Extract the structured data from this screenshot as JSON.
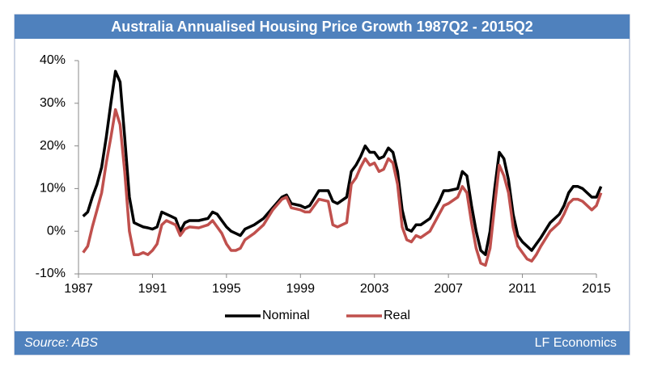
{
  "chart_data": {
    "type": "line",
    "title": "Australia Annualised Housing Price Growth 1987Q2 - 2015Q2",
    "source": "Source: ABS",
    "credit": "LF Economics",
    "x": [
      1987.25,
      1987.5,
      1987.75,
      1988.0,
      1988.25,
      1988.5,
      1988.75,
      1989.0,
      1989.25,
      1989.5,
      1989.75,
      1990.0,
      1990.25,
      1990.5,
      1990.75,
      1991.0,
      1991.25,
      1991.5,
      1991.75,
      1992.0,
      1992.25,
      1992.5,
      1992.75,
      1993.0,
      1993.5,
      1994.0,
      1994.25,
      1994.5,
      1994.75,
      1995.0,
      1995.25,
      1995.5,
      1995.75,
      1996.0,
      1996.5,
      1997.0,
      1997.5,
      1998.0,
      1998.25,
      1998.5,
      1999.0,
      1999.25,
      1999.5,
      2000.0,
      2000.5,
      2000.75,
      2001.0,
      2001.5,
      2001.75,
      2002.0,
      2002.25,
      2002.5,
      2002.75,
      2003.0,
      2003.25,
      2003.5,
      2003.75,
      2004.0,
      2004.25,
      2004.5,
      2004.75,
      2005.0,
      2005.25,
      2005.5,
      2006.0,
      2006.5,
      2006.75,
      2007.0,
      2007.5,
      2007.75,
      2008.0,
      2008.25,
      2008.5,
      2008.75,
      2009.0,
      2009.25,
      2009.5,
      2009.75,
      2010.0,
      2010.25,
      2010.5,
      2010.75,
      2011.0,
      2011.25,
      2011.5,
      2011.75,
      2012.0,
      2012.5,
      2013.0,
      2013.25,
      2013.5,
      2013.75,
      2014.0,
      2014.25,
      2014.75,
      2015.0,
      2015.25
    ],
    "series": [
      {
        "name": "Nominal",
        "color": "#000000",
        "values": [
          3.5,
          4.5,
          8,
          11,
          15,
          22,
          30,
          37.5,
          35,
          22,
          8,
          2,
          1.5,
          1,
          0.8,
          0.5,
          1,
          4.5,
          4,
          3.5,
          3,
          0,
          2,
          2.5,
          2.5,
          3,
          4.5,
          4,
          2.5,
          1,
          0,
          -0.5,
          -1,
          0.5,
          1.5,
          3,
          5.5,
          8,
          8.5,
          6.5,
          6,
          5.5,
          6,
          9.5,
          9.5,
          7,
          6.5,
          8,
          14,
          15.5,
          17.5,
          20,
          18.5,
          18.5,
          17,
          17.5,
          19.5,
          18.5,
          14,
          5,
          0.5,
          0,
          1.5,
          1.5,
          3,
          7,
          9.5,
          9.5,
          10,
          14,
          13,
          6,
          0,
          -4.5,
          -5.5,
          0,
          10,
          18.5,
          17,
          12,
          4,
          -1,
          -2.5,
          -3.5,
          -4.5,
          -3,
          -1.5,
          2,
          4,
          6,
          9,
          10.5,
          10.5,
          10,
          8,
          8,
          10.5
        ]
      },
      {
        "name": "Real",
        "color": "#c0504d",
        "values": [
          -5,
          -3.5,
          1,
          5,
          9,
          16,
          22,
          28.5,
          25,
          14,
          0,
          -5.5,
          -5.5,
          -5,
          -5.5,
          -4.5,
          -3,
          1.5,
          2.5,
          2,
          1.5,
          -1,
          0.5,
          1,
          0.8,
          1.5,
          2.5,
          1,
          -0.5,
          -3,
          -4.5,
          -4.5,
          -4,
          -2,
          -0.5,
          1.5,
          5,
          7.5,
          8,
          5.5,
          5,
          4.5,
          4.5,
          7.5,
          7,
          1.5,
          1,
          2,
          11,
          12.5,
          15,
          17,
          15.5,
          16,
          14,
          14.5,
          17,
          16,
          11,
          1,
          -2,
          -2.5,
          -1,
          -1.5,
          0,
          4,
          6,
          6.5,
          8,
          10.5,
          9,
          2,
          -4,
          -7.5,
          -8,
          -4,
          6,
          15.5,
          13,
          9,
          1,
          -3.5,
          -5,
          -6.5,
          -7,
          -5.5,
          -3.5,
          0,
          2,
          4,
          6.5,
          7.5,
          7.5,
          7,
          5,
          6,
          9
        ]
      }
    ],
    "xlim": [
      1987,
      2015
    ],
    "xticks": [
      1987,
      1991,
      1995,
      1999,
      2003,
      2007,
      2011,
      2015
    ],
    "ylim": [
      -10,
      40
    ],
    "yticks": [
      {
        "value": -10,
        "label": "-10%"
      },
      {
        "value": 0,
        "label": "0%"
      },
      {
        "value": 10,
        "label": "10%"
      },
      {
        "value": 20,
        "label": "20%"
      },
      {
        "value": 30,
        "label": "30%"
      },
      {
        "value": 40,
        "label": "40%"
      }
    ],
    "grid": false,
    "legend": "bottom"
  }
}
